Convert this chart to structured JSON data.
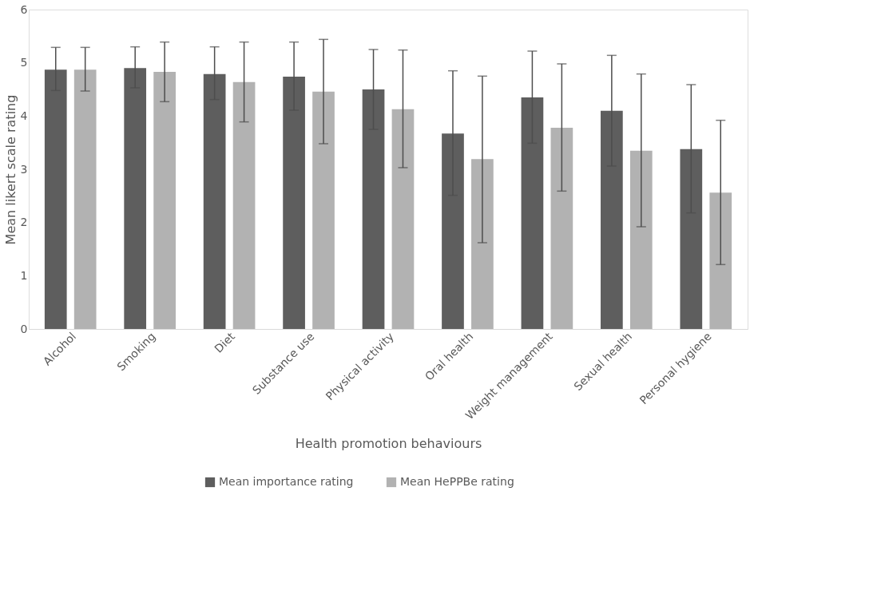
{
  "chart_data": {
    "type": "bar",
    "xlabel": "Health promotion behaviours",
    "ylabel": "Mean likert scale rating",
    "categories": [
      "Alcohol",
      "Smoking",
      "Diet",
      "Substance use",
      "Physical activity",
      "Oral health",
      "Weight management",
      "Sexual health",
      "Personal hygiene"
    ],
    "series": [
      {
        "name": "Mean importance rating",
        "color": "#5e5e5e",
        "values": [
          4.87,
          4.9,
          4.79,
          4.74,
          4.5,
          3.67,
          4.35,
          4.1,
          3.38
        ],
        "errors": [
          [
            4.48,
            5.29
          ],
          [
            4.53,
            5.3
          ],
          [
            4.31,
            5.3
          ],
          [
            4.11,
            5.39
          ],
          [
            3.75,
            5.25
          ],
          [
            2.51,
            4.85
          ],
          [
            3.49,
            5.22
          ],
          [
            3.06,
            5.14
          ],
          [
            2.18,
            4.59
          ]
        ]
      },
      {
        "name": "Mean HePPBe rating",
        "color": "#b2b2b2",
        "values": [
          4.87,
          4.83,
          4.64,
          4.46,
          4.13,
          3.19,
          3.78,
          3.35,
          2.56
        ],
        "errors": [
          [
            4.47,
            5.29
          ],
          [
            4.27,
            5.39
          ],
          [
            3.89,
            5.39
          ],
          [
            3.48,
            5.44
          ],
          [
            3.03,
            5.24
          ],
          [
            1.62,
            4.75
          ],
          [
            2.59,
            4.98
          ],
          [
            1.92,
            4.79
          ],
          [
            1.21,
            3.92
          ]
        ]
      }
    ],
    "ylim": [
      0,
      6
    ],
    "yticks": [
      0,
      1,
      2,
      3,
      4,
      5,
      6
    ],
    "grid": false,
    "legend": "bottom"
  }
}
